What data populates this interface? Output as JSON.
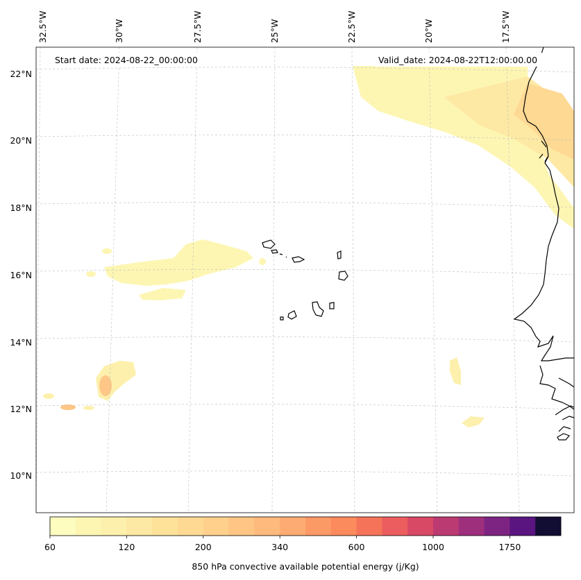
{
  "map": {
    "start_date": "Start date: 2024-08-22_00:00:00",
    "valid_date": "Valid_date: 2024-08-22T12:00:00.00",
    "lon_labels": [
      {
        "text": "32.5°W",
        "lon": -32.5
      },
      {
        "text": "30°W",
        "lon": -30
      },
      {
        "text": "27.5°W",
        "lon": -27.5
      },
      {
        "text": "25°W",
        "lon": -25
      },
      {
        "text": "22.5°W",
        "lon": -22.5
      },
      {
        "text": "20°W",
        "lon": -20
      },
      {
        "text": "17.5°W",
        "lon": -17.5
      }
    ],
    "lat_labels": [
      {
        "text": "22°N",
        "lat": 22
      },
      {
        "text": "20°N",
        "lat": 20
      },
      {
        "text": "18°N",
        "lat": 18
      },
      {
        "text": "16°N",
        "lat": 16
      },
      {
        "text": "14°N",
        "lat": 14
      },
      {
        "text": "12°N",
        "lat": 12
      },
      {
        "text": "10°N",
        "lat": 10
      }
    ],
    "colorbar": {
      "label": "850 hPa convective available potential energy (j/Kg)",
      "tick_labels": [
        "60",
        "120",
        "200",
        "340",
        "600",
        "1000",
        "1750"
      ],
      "colors": [
        "#fcfdbf",
        "#fdf6b3",
        "#fdf0ac",
        "#fde9a4",
        "#fee29a",
        "#fed994",
        "#fed08c",
        "#fec584",
        "#feb97c",
        "#fdab72",
        "#fc9a66",
        "#fb8a5c",
        "#f57459",
        "#eb5d5e",
        "#d84966",
        "#bc3a72",
        "#9e2f7d",
        "#7d2482",
        "#5a1581",
        "#120d33"
      ],
      "cmap": "magma_r"
    }
  }
}
